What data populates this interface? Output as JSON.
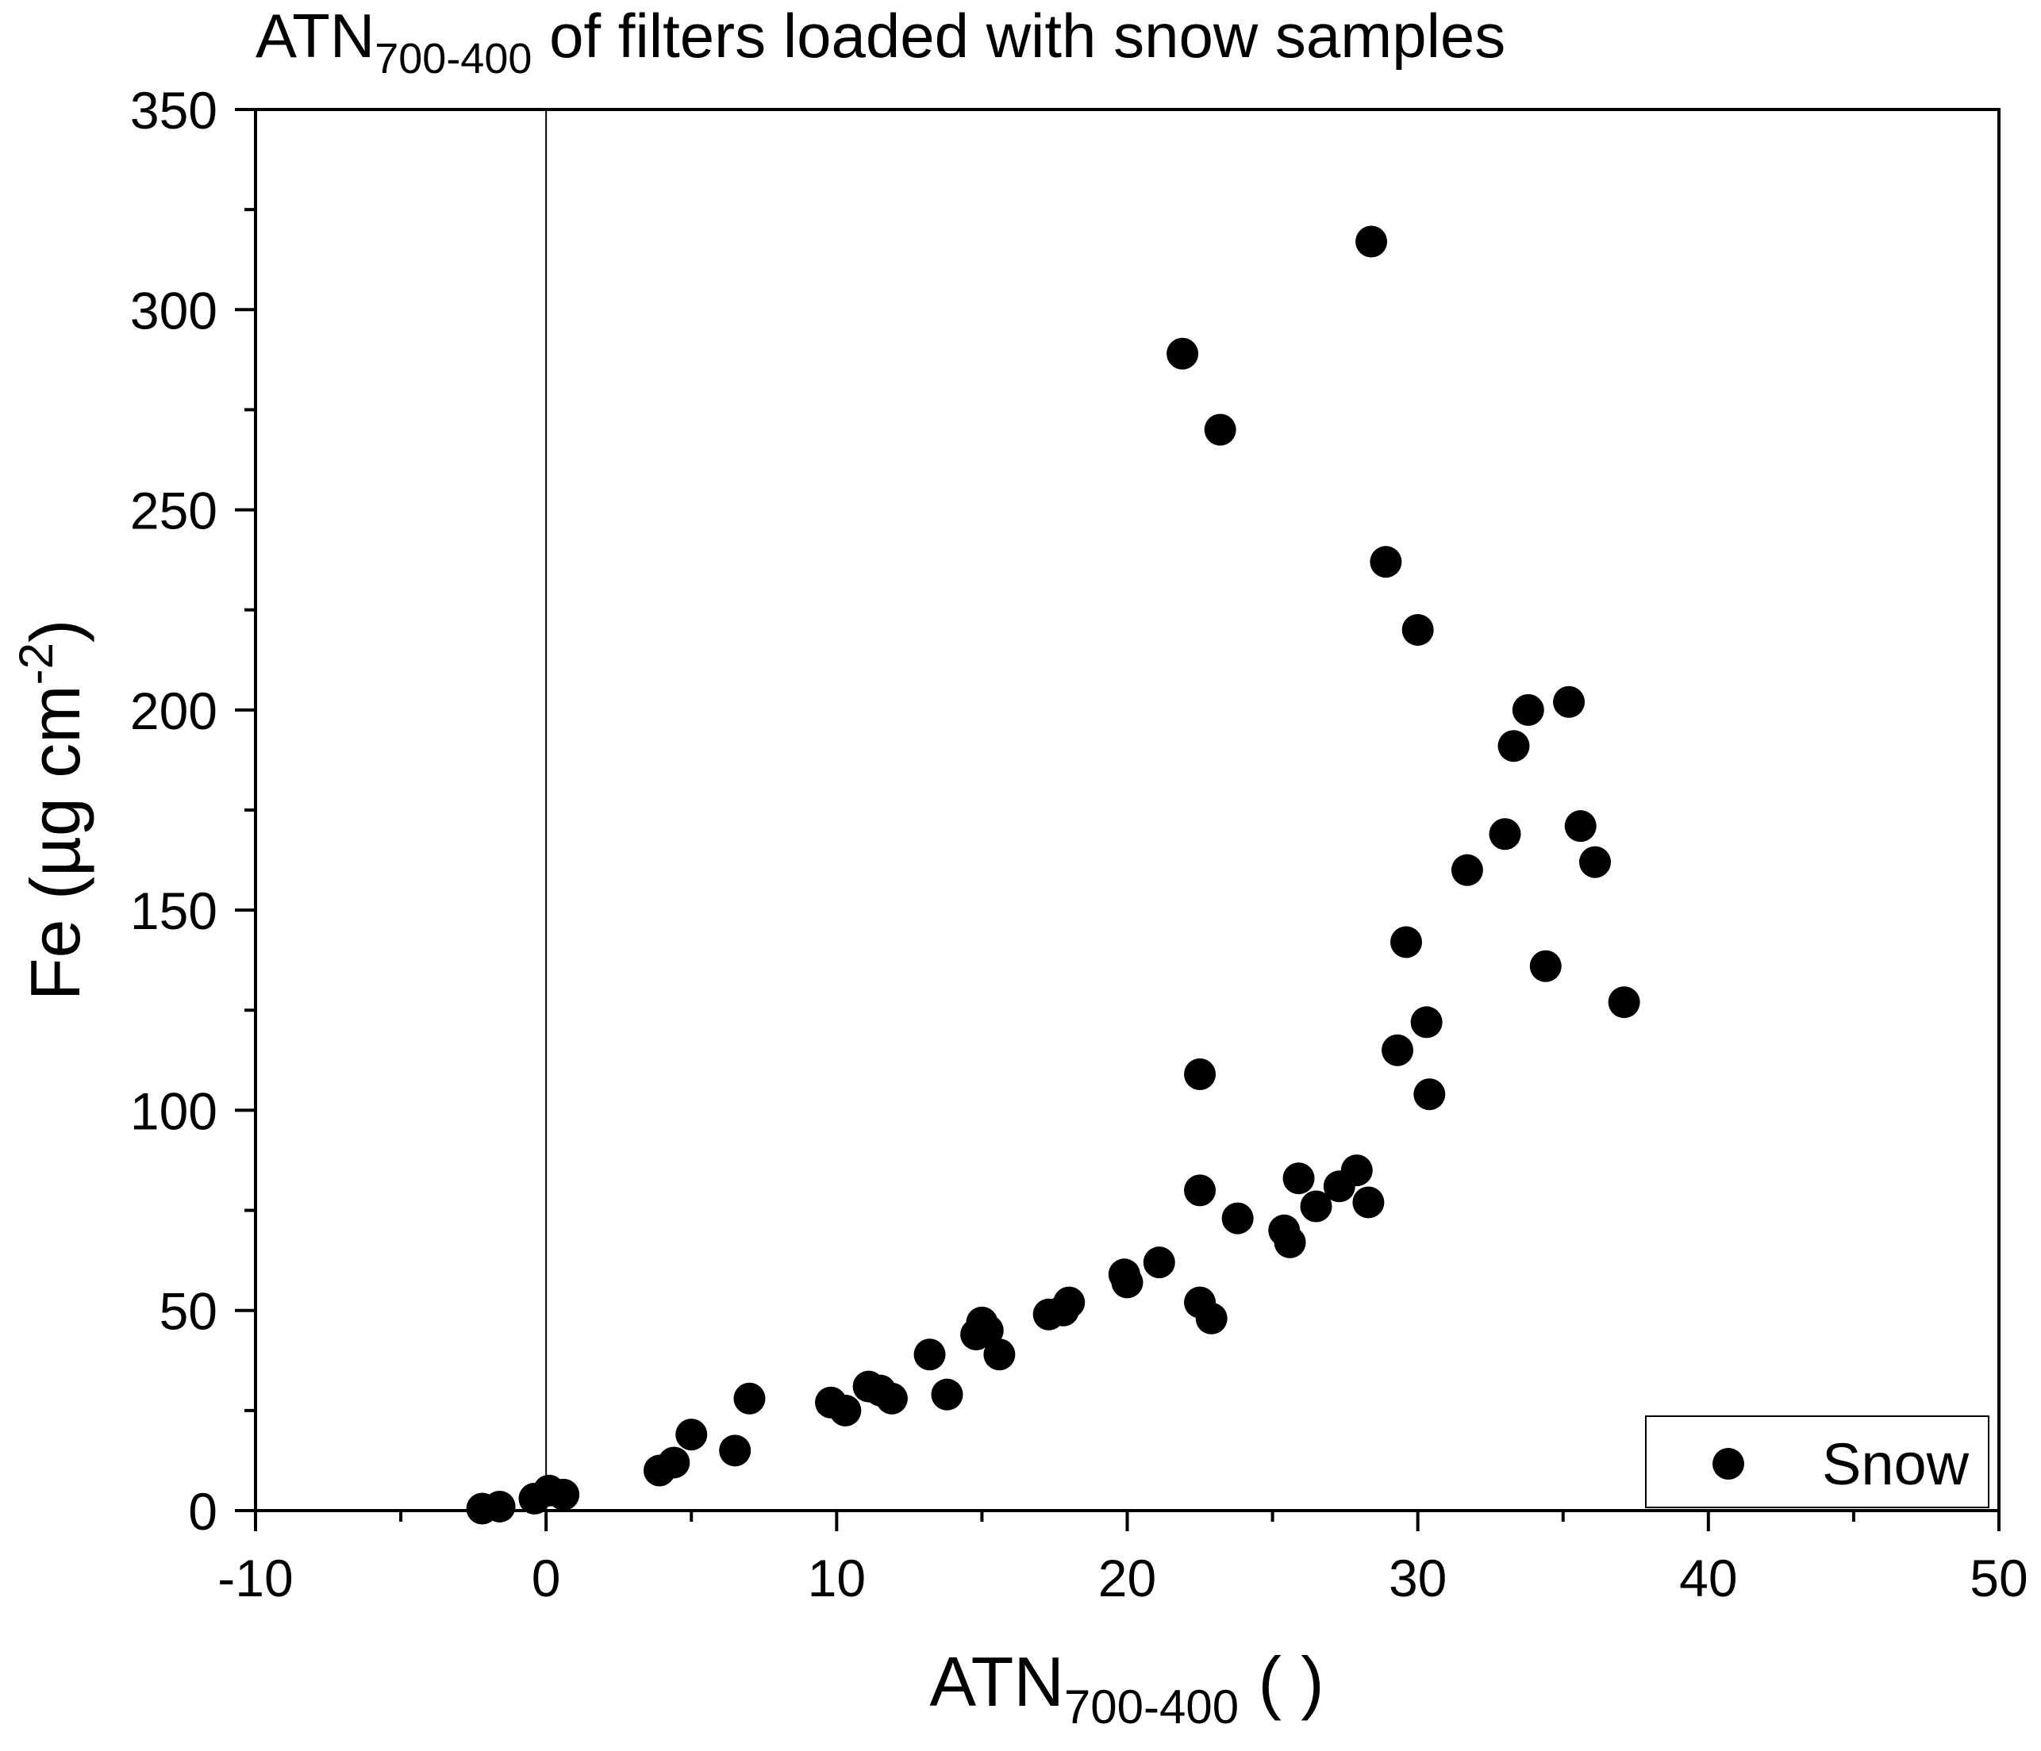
{
  "chart_data": {
    "type": "scatter",
    "title": {
      "main": "ATN",
      "sub": "700-400",
      "rest": " of filters loaded with snow samples"
    },
    "xlabel": {
      "main": "ATN",
      "sub": "700-400",
      "rest": " ( )"
    },
    "ylabel": {
      "main": "Fe (µg cm",
      "sup": "-2",
      "rest": ")"
    },
    "xlim": [
      -10,
      50
    ],
    "ylim": [
      0,
      350
    ],
    "xticks": [
      -10,
      0,
      10,
      20,
      30,
      40,
      50
    ],
    "yticks": [
      0,
      50,
      100,
      150,
      200,
      250,
      300,
      350
    ],
    "x_minor_step": 5,
    "y_minor_step": 25,
    "grid": false,
    "reference_line_x": 0,
    "legend": {
      "position": "bottom-right",
      "entries": [
        "Snow"
      ]
    },
    "series": [
      {
        "name": "Snow",
        "color": "#000000",
        "marker": "circle",
        "points": [
          [
            -2.2,
            0.5
          ],
          [
            -1.6,
            1.0
          ],
          [
            -0.4,
            3.0
          ],
          [
            0.1,
            5.0
          ],
          [
            0.6,
            4.0
          ],
          [
            3.9,
            10.0
          ],
          [
            4.4,
            12.0
          ],
          [
            5.0,
            19.0
          ],
          [
            6.5,
            15.0
          ],
          [
            7.0,
            28.0
          ],
          [
            9.8,
            27.0
          ],
          [
            10.3,
            25.0
          ],
          [
            11.1,
            31.0
          ],
          [
            11.5,
            30.0
          ],
          [
            11.9,
            28.0
          ],
          [
            13.2,
            39.0
          ],
          [
            13.8,
            29.0
          ],
          [
            14.8,
            44.0
          ],
          [
            15.0,
            47.0
          ],
          [
            15.2,
            45.0
          ],
          [
            15.6,
            39.0
          ],
          [
            17.3,
            49.0
          ],
          [
            17.8,
            50.0
          ],
          [
            18.0,
            52.0
          ],
          [
            19.9,
            59.0
          ],
          [
            20.0,
            57.0
          ],
          [
            21.1,
            62.0
          ],
          [
            21.9,
            289.0
          ],
          [
            22.5,
            109.0
          ],
          [
            22.5,
            80.0
          ],
          [
            22.5,
            52.0
          ],
          [
            22.9,
            48.0
          ],
          [
            23.2,
            270.0
          ],
          [
            23.8,
            73.0
          ],
          [
            25.4,
            70.0
          ],
          [
            25.6,
            67.0
          ],
          [
            25.9,
            83.0
          ],
          [
            26.5,
            76.0
          ],
          [
            27.3,
            81.0
          ],
          [
            27.9,
            85.0
          ],
          [
            28.3,
            77.0
          ],
          [
            28.4,
            317.0
          ],
          [
            28.9,
            237.0
          ],
          [
            29.3,
            115.0
          ],
          [
            29.6,
            142.0
          ],
          [
            30.0,
            220.0
          ],
          [
            30.3,
            122.0
          ],
          [
            30.4,
            104.0
          ],
          [
            31.7,
            160.0
          ],
          [
            33.0,
            169.0
          ],
          [
            33.3,
            191.0
          ],
          [
            33.8,
            200.0
          ],
          [
            34.4,
            136.0
          ],
          [
            35.2,
            202.0
          ],
          [
            35.6,
            171.0
          ],
          [
            36.1,
            162.0
          ],
          [
            37.1,
            127.0
          ]
        ]
      }
    ]
  }
}
